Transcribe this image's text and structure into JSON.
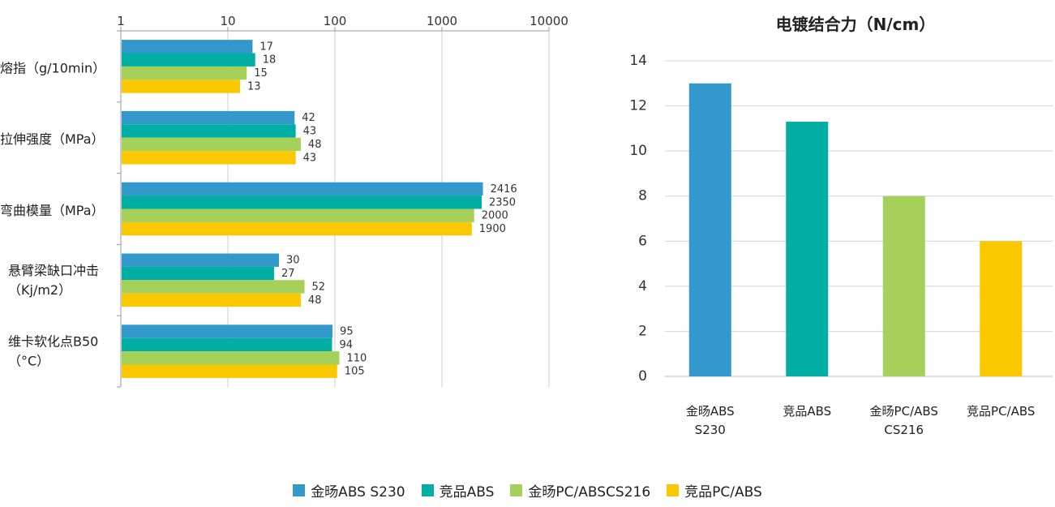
{
  "chart_data": [
    {
      "type": "bar",
      "orientation": "horizontal",
      "x_scale": "log",
      "xlim": [
        1,
        10000
      ],
      "x_ticks": [
        "1",
        "10",
        "100",
        "1000",
        "10000"
      ],
      "grid": true,
      "categories": [
        [
          "熔指（g/10min）"
        ],
        [
          "拉伸强度（MPa）"
        ],
        [
          "弯曲模量（MPa）"
        ],
        [
          "悬臂梁缺口冲击",
          "（Kj/m2）"
        ],
        [
          "维卡软化点B50",
          "（°C）"
        ]
      ],
      "series": [
        {
          "name": "金旸ABS S230",
          "color": "#3399cc",
          "values": [
            17,
            42,
            2416,
            30,
            95
          ]
        },
        {
          "name": "竞品ABS",
          "color": "#00aea3",
          "values": [
            18,
            43,
            2350,
            27,
            94
          ]
        },
        {
          "name": "金旸PC/ABSCS216",
          "color": "#a5d05a",
          "values": [
            15,
            48,
            2000,
            52,
            110
          ]
        },
        {
          "name": "竞品PC/ABS",
          "color": "#f9c800",
          "values": [
            13,
            43,
            1900,
            48,
            105
          ]
        }
      ]
    },
    {
      "type": "bar",
      "title": "电镀结合力（N/cm）",
      "ylim": [
        0,
        14
      ],
      "y_ticks": [
        "0",
        "2",
        "4",
        "6",
        "8",
        "10",
        "12",
        "14"
      ],
      "grid": true,
      "categories": [
        [
          "金旸ABS",
          "S230"
        ],
        [
          "竞品ABS"
        ],
        [
          "金旸PC/ABS",
          "CS216"
        ],
        [
          "竞品PC/ABS"
        ]
      ],
      "values": [
        13,
        11.3,
        8,
        6
      ],
      "colors": [
        "#3399cc",
        "#00aea3",
        "#a5d05a",
        "#f9c800"
      ]
    }
  ],
  "legend": {
    "placement": "bottom-center",
    "items": [
      {
        "label": "金旸ABS S230",
        "color": "#3399cc"
      },
      {
        "label": "竞品ABS",
        "color": "#00aea3"
      },
      {
        "label": "金旸PC/ABSCS216",
        "color": "#a5d05a"
      },
      {
        "label": "竞品PC/ABS",
        "color": "#f9c800"
      }
    ]
  }
}
